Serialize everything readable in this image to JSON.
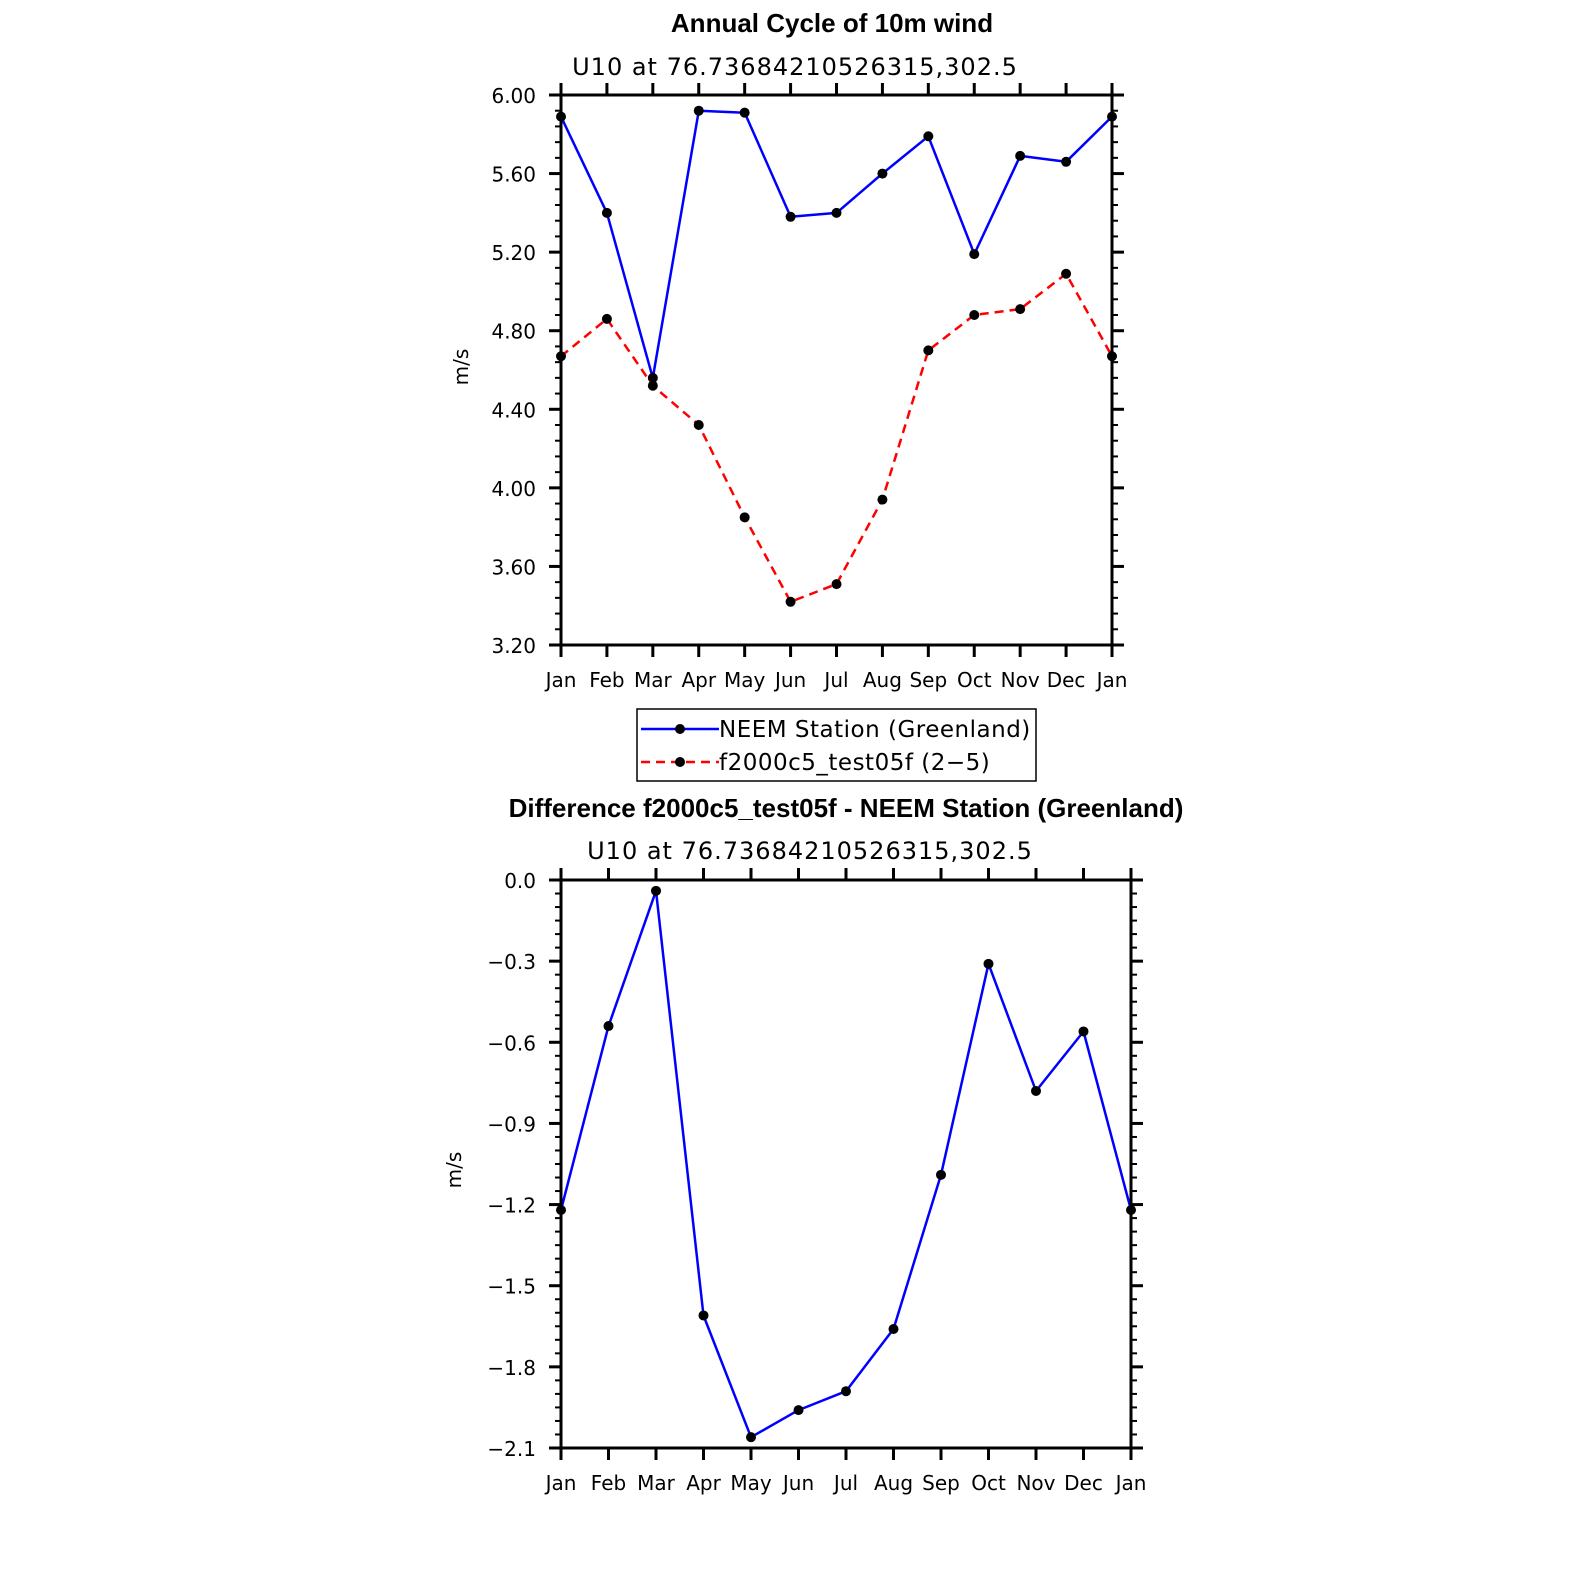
{
  "chart_data": [
    {
      "type": "line",
      "title": "Annual Cycle of 10m wind",
      "subtitle": "U10  at  76.73684210526315,302.5",
      "xlabel": "",
      "ylabel": "m/s",
      "categories": [
        "Jan",
        "Feb",
        "Mar",
        "Apr",
        "May",
        "Jun",
        "Jul",
        "Aug",
        "Sep",
        "Oct",
        "Nov",
        "Dec",
        "Jan"
      ],
      "ylim": [
        3.2,
        6.0
      ],
      "yticks": [
        "6.00",
        "5.60",
        "5.20",
        "4.80",
        "4.40",
        "4.00",
        "3.60",
        "3.20"
      ],
      "series": [
        {
          "name": "NEEM Station (Greenland)",
          "color": "#0000ff",
          "dashed": false,
          "values": [
            5.89,
            5.4,
            4.56,
            5.92,
            5.91,
            5.38,
            5.4,
            5.6,
            5.79,
            5.19,
            5.69,
            5.66,
            5.89
          ]
        },
        {
          "name": "f2000c5_test05f (2−5)",
          "color": "#ff0000",
          "dashed": true,
          "values": [
            4.67,
            4.86,
            4.52,
            4.32,
            3.85,
            3.42,
            3.51,
            3.94,
            4.7,
            4.88,
            4.91,
            5.09,
            4.67
          ]
        }
      ],
      "legend": [
        "NEEM Station (Greenland)",
        "f2000c5_test05f (2−5)"
      ]
    },
    {
      "type": "line",
      "title": "Difference f2000c5_test05f - NEEM Station (Greenland)",
      "subtitle": "U10  at  76.73684210526315,302.5",
      "xlabel": "",
      "ylabel": "m/s",
      "categories": [
        "Jan",
        "Feb",
        "Mar",
        "Apr",
        "May",
        "Jun",
        "Jul",
        "Aug",
        "Sep",
        "Oct",
        "Nov",
        "Dec",
        "Jan"
      ],
      "ylim": [
        -2.1,
        0.0
      ],
      "yticks": [
        "0.0",
        "−0.3",
        "−0.6",
        "−0.9",
        "−1.2",
        "−1.5",
        "−1.8",
        "−2.1"
      ],
      "series": [
        {
          "name": "Difference",
          "color": "#0000ff",
          "dashed": false,
          "values": [
            -1.22,
            -0.54,
            -0.04,
            -1.61,
            -2.06,
            -1.96,
            -1.89,
            -1.66,
            -1.09,
            -0.31,
            -0.78,
            -0.56,
            -1.22
          ]
        }
      ]
    }
  ]
}
